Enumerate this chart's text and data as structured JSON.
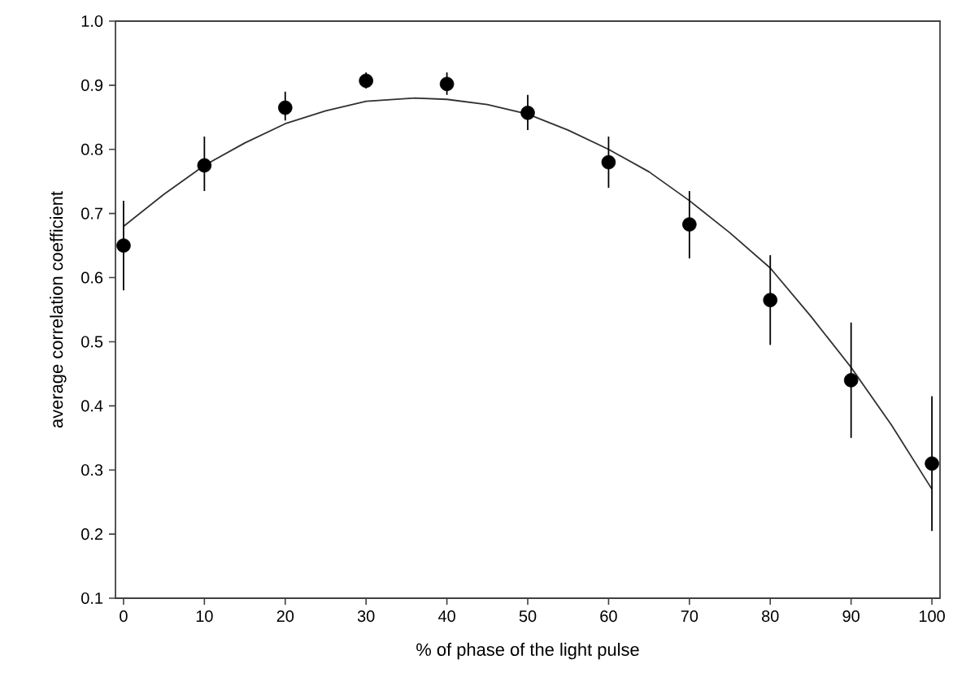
{
  "chart_data": {
    "type": "scatter",
    "xlabel": "% of phase of the light pulse",
    "ylabel": "average correlation coefficient",
    "x": [
      0,
      10,
      20,
      30,
      40,
      50,
      60,
      70,
      80,
      90,
      100
    ],
    "xlim": [
      -1,
      101
    ],
    "ylim": [
      0.1,
      1.0
    ],
    "xticks": [
      0,
      10,
      20,
      30,
      40,
      50,
      60,
      70,
      80,
      90,
      100
    ],
    "yticks": [
      0.1,
      0.2,
      0.3,
      0.4,
      0.5,
      0.6,
      0.7,
      0.8,
      0.9,
      {
        "value": 1.0,
        "label": "1.0"
      }
    ],
    "grid": false,
    "series": [
      {
        "color": "#000000",
        "marker": "circle",
        "values": [
          0.65,
          0.775,
          0.865,
          0.907,
          0.902,
          0.857,
          0.78,
          0.683,
          0.565,
          0.44,
          0.31
        ],
        "errors": [
          [
            0.58,
            0.72
          ],
          [
            0.735,
            0.82
          ],
          [
            0.845,
            0.89
          ],
          [
            0.895,
            0.92
          ],
          [
            0.885,
            0.92
          ],
          [
            0.83,
            0.885
          ],
          [
            0.74,
            0.82
          ],
          [
            0.63,
            0.735
          ],
          [
            0.495,
            0.635
          ],
          [
            0.35,
            0.53
          ],
          [
            0.205,
            0.415
          ]
        ]
      },
      {
        "type": "line",
        "color": "#303030",
        "marker": "none",
        "line_style": "solid",
        "x": [
          0,
          5,
          10,
          15,
          20,
          25,
          30,
          36,
          40,
          45,
          50,
          55,
          60,
          65,
          70,
          75,
          80,
          85,
          90,
          95,
          100
        ],
        "values": [
          0.68,
          0.73,
          0.775,
          0.81,
          0.84,
          0.86,
          0.875,
          0.88,
          0.878,
          0.87,
          0.855,
          0.83,
          0.8,
          0.765,
          0.72,
          0.67,
          0.615,
          0.54,
          0.46,
          0.37,
          0.27
        ]
      }
    ]
  }
}
